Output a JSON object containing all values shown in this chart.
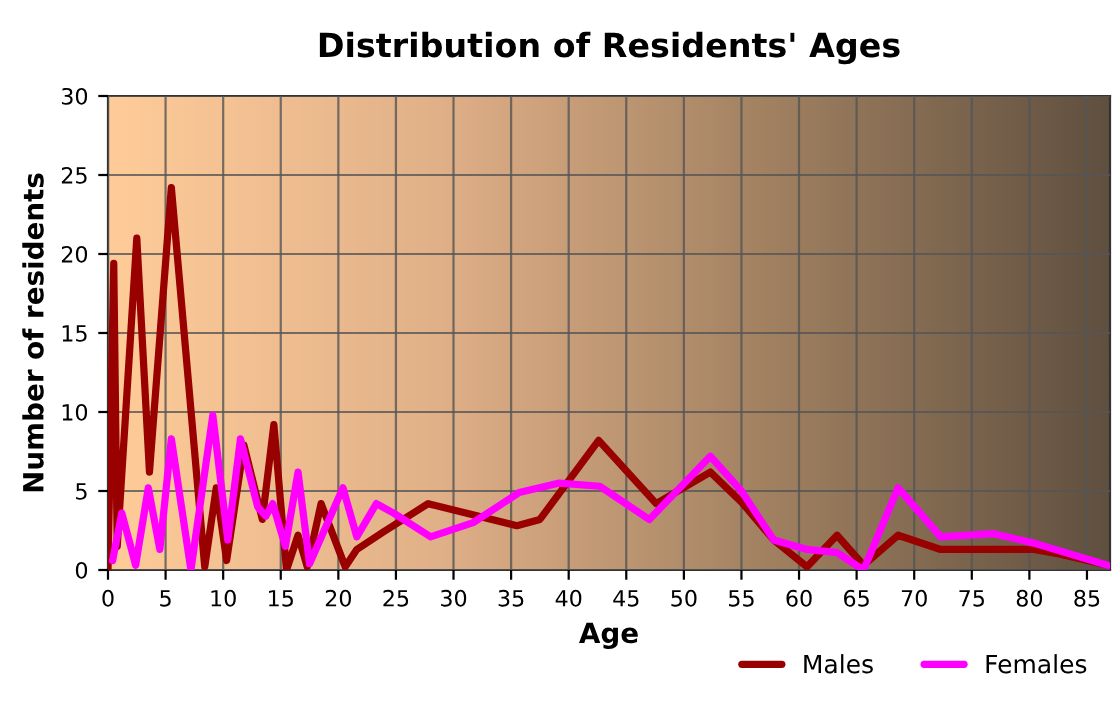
{
  "chart_data": {
    "type": "line",
    "title": "Distribution of Residents' Ages",
    "xlabel": "Age",
    "ylabel": "Number of residents",
    "xlim": [
      0,
      87
    ],
    "ylim": [
      0,
      30
    ],
    "xticks": [
      0,
      5,
      10,
      15,
      20,
      25,
      30,
      35,
      40,
      45,
      50,
      55,
      60,
      65,
      70,
      75,
      80,
      85
    ],
    "yticks": [
      0,
      5,
      10,
      15,
      20,
      25,
      30
    ],
    "grid": true,
    "legend": "bottom right",
    "line_style": "solid",
    "marker": "none",
    "series": [
      {
        "name": "Males",
        "color": "#990000",
        "x": [
          0,
          0.5,
          0.8,
          2.5,
          3.6,
          5.5,
          8.4,
          9.4,
          10.3,
          11.8,
          13.4,
          14.4,
          15.5,
          16.5,
          17.3,
          18.5,
          20.6,
          21.6,
          23.9,
          27.8,
          35.5,
          37.5,
          42.6,
          47.6,
          52.3,
          55,
          57.8,
          60.7,
          63.3,
          65.6,
          68.6,
          72.3,
          80.4,
          82.7,
          86.8
        ],
        "values": [
          0,
          19.4,
          1.5,
          21,
          6.2,
          24.2,
          0.2,
          5.2,
          0.6,
          7.9,
          3.2,
          9.2,
          0,
          2.2,
          0.2,
          4.2,
          0.2,
          1.3,
          2.4,
          4.2,
          2.8,
          3.2,
          8.2,
          4.2,
          6.2,
          4.3,
          1.9,
          0.2,
          2.2,
          0.3,
          2.2,
          1.3,
          1.3,
          1.0,
          0.3
        ]
      },
      {
        "name": "Females",
        "color": "#ff00ff",
        "x": [
          0.4,
          1.2,
          2.4,
          3.5,
          4.5,
          5.5,
          7.2,
          9.1,
          10.4,
          11.5,
          13.0,
          13.7,
          14.3,
          15.4,
          16.5,
          17.5,
          20.4,
          21.6,
          23.3,
          24.8,
          28,
          31.7,
          35.7,
          39.2,
          42.7,
          47.0,
          52.3,
          55,
          57.8,
          60.7,
          63.3,
          65.6,
          68.6,
          72.3,
          76.9,
          80.4,
          86.8
        ],
        "values": [
          0.6,
          3.6,
          0.3,
          5.2,
          1.3,
          8.3,
          0,
          9.8,
          1.9,
          8.3,
          4,
          3.4,
          4.2,
          1.5,
          6.2,
          0.4,
          5.2,
          2.1,
          4.2,
          3.6,
          2.1,
          3.0,
          4.9,
          5.5,
          5.3,
          3.2,
          7.2,
          5.0,
          1.9,
          1.3,
          1.1,
          0,
          5.2,
          2.1,
          2.3,
          1.7,
          0.3
        ]
      }
    ]
  }
}
